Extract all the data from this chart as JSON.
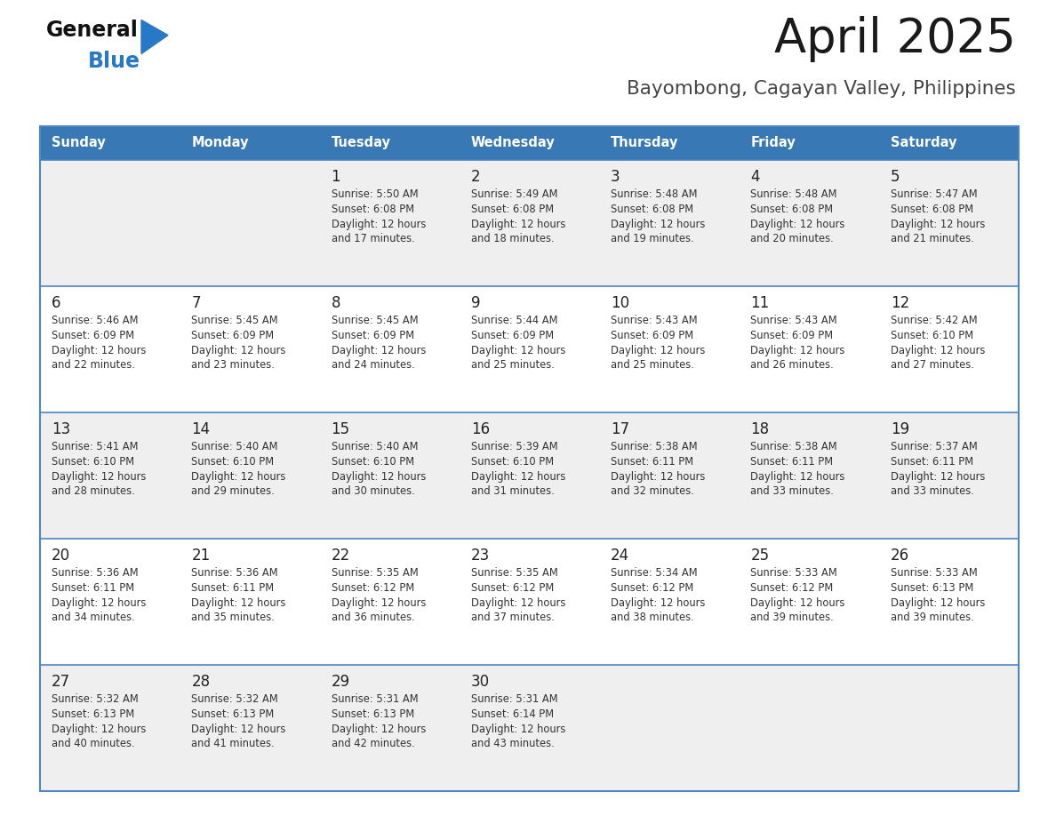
{
  "title": "April 2025",
  "subtitle": "Bayombong, Cagayan Valley, Philippines",
  "header_bg": "#3878b4",
  "header_text": "#ffffff",
  "day_names": [
    "Sunday",
    "Monday",
    "Tuesday",
    "Wednesday",
    "Thursday",
    "Friday",
    "Saturday"
  ],
  "row_bg_light": "#efefef",
  "row_bg_white": "#ffffff",
  "cell_border_color": "#4a86c8",
  "number_color": "#222222",
  "text_color": "#333333",
  "logo_general_color": "#111111",
  "logo_blue_color": "#2878c8",
  "logo_triangle_color": "#2878c8",
  "calendar_data": [
    [
      {
        "day": null,
        "info": null
      },
      {
        "day": null,
        "info": null
      },
      {
        "day": "1",
        "info": "Sunrise: 5:50 AM\nSunset: 6:08 PM\nDaylight: 12 hours\nand 17 minutes."
      },
      {
        "day": "2",
        "info": "Sunrise: 5:49 AM\nSunset: 6:08 PM\nDaylight: 12 hours\nand 18 minutes."
      },
      {
        "day": "3",
        "info": "Sunrise: 5:48 AM\nSunset: 6:08 PM\nDaylight: 12 hours\nand 19 minutes."
      },
      {
        "day": "4",
        "info": "Sunrise: 5:48 AM\nSunset: 6:08 PM\nDaylight: 12 hours\nand 20 minutes."
      },
      {
        "day": "5",
        "info": "Sunrise: 5:47 AM\nSunset: 6:08 PM\nDaylight: 12 hours\nand 21 minutes."
      }
    ],
    [
      {
        "day": "6",
        "info": "Sunrise: 5:46 AM\nSunset: 6:09 PM\nDaylight: 12 hours\nand 22 minutes."
      },
      {
        "day": "7",
        "info": "Sunrise: 5:45 AM\nSunset: 6:09 PM\nDaylight: 12 hours\nand 23 minutes."
      },
      {
        "day": "8",
        "info": "Sunrise: 5:45 AM\nSunset: 6:09 PM\nDaylight: 12 hours\nand 24 minutes."
      },
      {
        "day": "9",
        "info": "Sunrise: 5:44 AM\nSunset: 6:09 PM\nDaylight: 12 hours\nand 25 minutes."
      },
      {
        "day": "10",
        "info": "Sunrise: 5:43 AM\nSunset: 6:09 PM\nDaylight: 12 hours\nand 25 minutes."
      },
      {
        "day": "11",
        "info": "Sunrise: 5:43 AM\nSunset: 6:09 PM\nDaylight: 12 hours\nand 26 minutes."
      },
      {
        "day": "12",
        "info": "Sunrise: 5:42 AM\nSunset: 6:10 PM\nDaylight: 12 hours\nand 27 minutes."
      }
    ],
    [
      {
        "day": "13",
        "info": "Sunrise: 5:41 AM\nSunset: 6:10 PM\nDaylight: 12 hours\nand 28 minutes."
      },
      {
        "day": "14",
        "info": "Sunrise: 5:40 AM\nSunset: 6:10 PM\nDaylight: 12 hours\nand 29 minutes."
      },
      {
        "day": "15",
        "info": "Sunrise: 5:40 AM\nSunset: 6:10 PM\nDaylight: 12 hours\nand 30 minutes."
      },
      {
        "day": "16",
        "info": "Sunrise: 5:39 AM\nSunset: 6:10 PM\nDaylight: 12 hours\nand 31 minutes."
      },
      {
        "day": "17",
        "info": "Sunrise: 5:38 AM\nSunset: 6:11 PM\nDaylight: 12 hours\nand 32 minutes."
      },
      {
        "day": "18",
        "info": "Sunrise: 5:38 AM\nSunset: 6:11 PM\nDaylight: 12 hours\nand 33 minutes."
      },
      {
        "day": "19",
        "info": "Sunrise: 5:37 AM\nSunset: 6:11 PM\nDaylight: 12 hours\nand 33 minutes."
      }
    ],
    [
      {
        "day": "20",
        "info": "Sunrise: 5:36 AM\nSunset: 6:11 PM\nDaylight: 12 hours\nand 34 minutes."
      },
      {
        "day": "21",
        "info": "Sunrise: 5:36 AM\nSunset: 6:11 PM\nDaylight: 12 hours\nand 35 minutes."
      },
      {
        "day": "22",
        "info": "Sunrise: 5:35 AM\nSunset: 6:12 PM\nDaylight: 12 hours\nand 36 minutes."
      },
      {
        "day": "23",
        "info": "Sunrise: 5:35 AM\nSunset: 6:12 PM\nDaylight: 12 hours\nand 37 minutes."
      },
      {
        "day": "24",
        "info": "Sunrise: 5:34 AM\nSunset: 6:12 PM\nDaylight: 12 hours\nand 38 minutes."
      },
      {
        "day": "25",
        "info": "Sunrise: 5:33 AM\nSunset: 6:12 PM\nDaylight: 12 hours\nand 39 minutes."
      },
      {
        "day": "26",
        "info": "Sunrise: 5:33 AM\nSunset: 6:13 PM\nDaylight: 12 hours\nand 39 minutes."
      }
    ],
    [
      {
        "day": "27",
        "info": "Sunrise: 5:32 AM\nSunset: 6:13 PM\nDaylight: 12 hours\nand 40 minutes."
      },
      {
        "day": "28",
        "info": "Sunrise: 5:32 AM\nSunset: 6:13 PM\nDaylight: 12 hours\nand 41 minutes."
      },
      {
        "day": "29",
        "info": "Sunrise: 5:31 AM\nSunset: 6:13 PM\nDaylight: 12 hours\nand 42 minutes."
      },
      {
        "day": "30",
        "info": "Sunrise: 5:31 AM\nSunset: 6:14 PM\nDaylight: 12 hours\nand 43 minutes."
      },
      {
        "day": null,
        "info": null
      },
      {
        "day": null,
        "info": null
      },
      {
        "day": null,
        "info": null
      }
    ]
  ]
}
